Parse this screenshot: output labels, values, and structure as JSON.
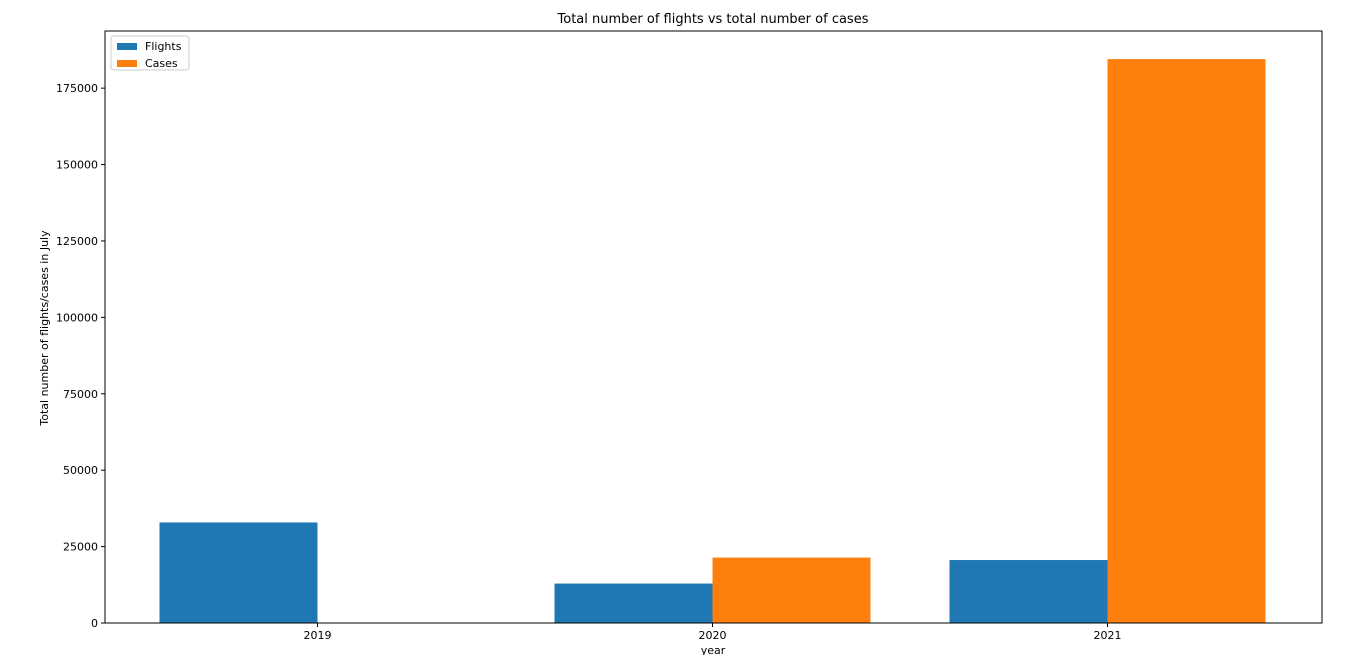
{
  "chart_data": {
    "type": "bar",
    "title": "Total number of flights vs total number of cases",
    "xlabel": "year",
    "ylabel": "Total number of flights/cases in July",
    "categories": [
      "2019",
      "2020",
      "2021"
    ],
    "series": [
      {
        "name": "Flights",
        "color": "#1f77b4",
        "values": [
          32900,
          12900,
          20600
        ]
      },
      {
        "name": "Cases",
        "color": "#ff7f0e",
        "values": [
          0,
          21400,
          184500
        ]
      }
    ],
    "ylim": [
      0,
      193700
    ],
    "yticks": [
      0,
      25000,
      50000,
      75000,
      100000,
      125000,
      150000,
      175000
    ],
    "ytick_labels": [
      "0",
      "25000",
      "50000",
      "75000",
      "100000",
      "125000",
      "150000",
      "175000"
    ],
    "grid": false,
    "legend_position": "top-left"
  }
}
